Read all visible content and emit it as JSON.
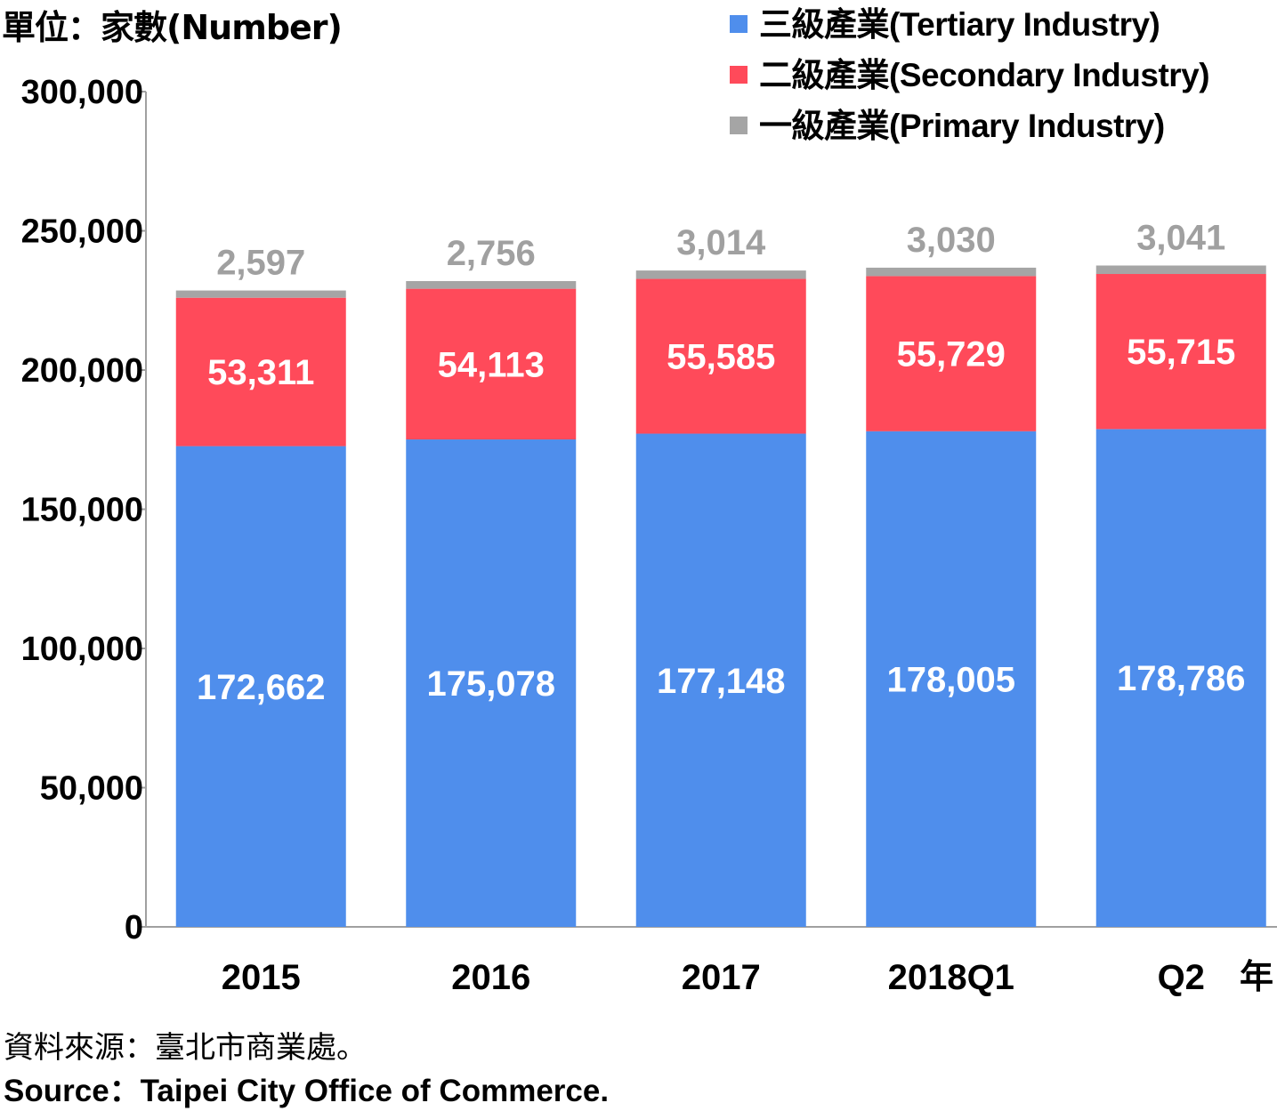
{
  "unit_label": "單位：家數(Number)",
  "source_zh": "資料來源：臺北市商業處。",
  "source_en": "Source：Taipei City Office of Commerce.",
  "x_unit_label": "年",
  "chart_data": {
    "type": "bar",
    "stacked": true,
    "categories": [
      "2015",
      "2016",
      "2017",
      "2018Q1",
      "Q2"
    ],
    "series": [
      {
        "name": "三級產業(Tertiary Industry)",
        "color": "#4f8eec",
        "values": [
          172662,
          175078,
          177148,
          178005,
          178786
        ],
        "labels": [
          "172,662",
          "175,078",
          "177,148",
          "178,005",
          "178,786"
        ]
      },
      {
        "name": "二級產業(Secondary Industry)",
        "color": "#ff4a5a",
        "values": [
          53311,
          54113,
          55585,
          55729,
          55715
        ],
        "labels": [
          "53,311",
          "54,113",
          "55,585",
          "55,729",
          "55,715"
        ]
      },
      {
        "name": "一級產業(Primary Industry)",
        "color": "#a5a5a5",
        "values": [
          2597,
          2756,
          3014,
          3030,
          3041
        ],
        "labels": [
          "2,597",
          "2,756",
          "3,014",
          "3,030",
          "3,041"
        ]
      }
    ],
    "legend_order": [
      0,
      1,
      2
    ],
    "legend_position": "top-right",
    "ylim": [
      0,
      300000
    ],
    "yticks": [
      0,
      50000,
      100000,
      150000,
      200000,
      250000,
      300000
    ],
    "ytick_labels": [
      "0",
      "50,000",
      "100,000",
      "150,000",
      "200,000",
      "250,000",
      "300,000"
    ],
    "grid": false
  }
}
